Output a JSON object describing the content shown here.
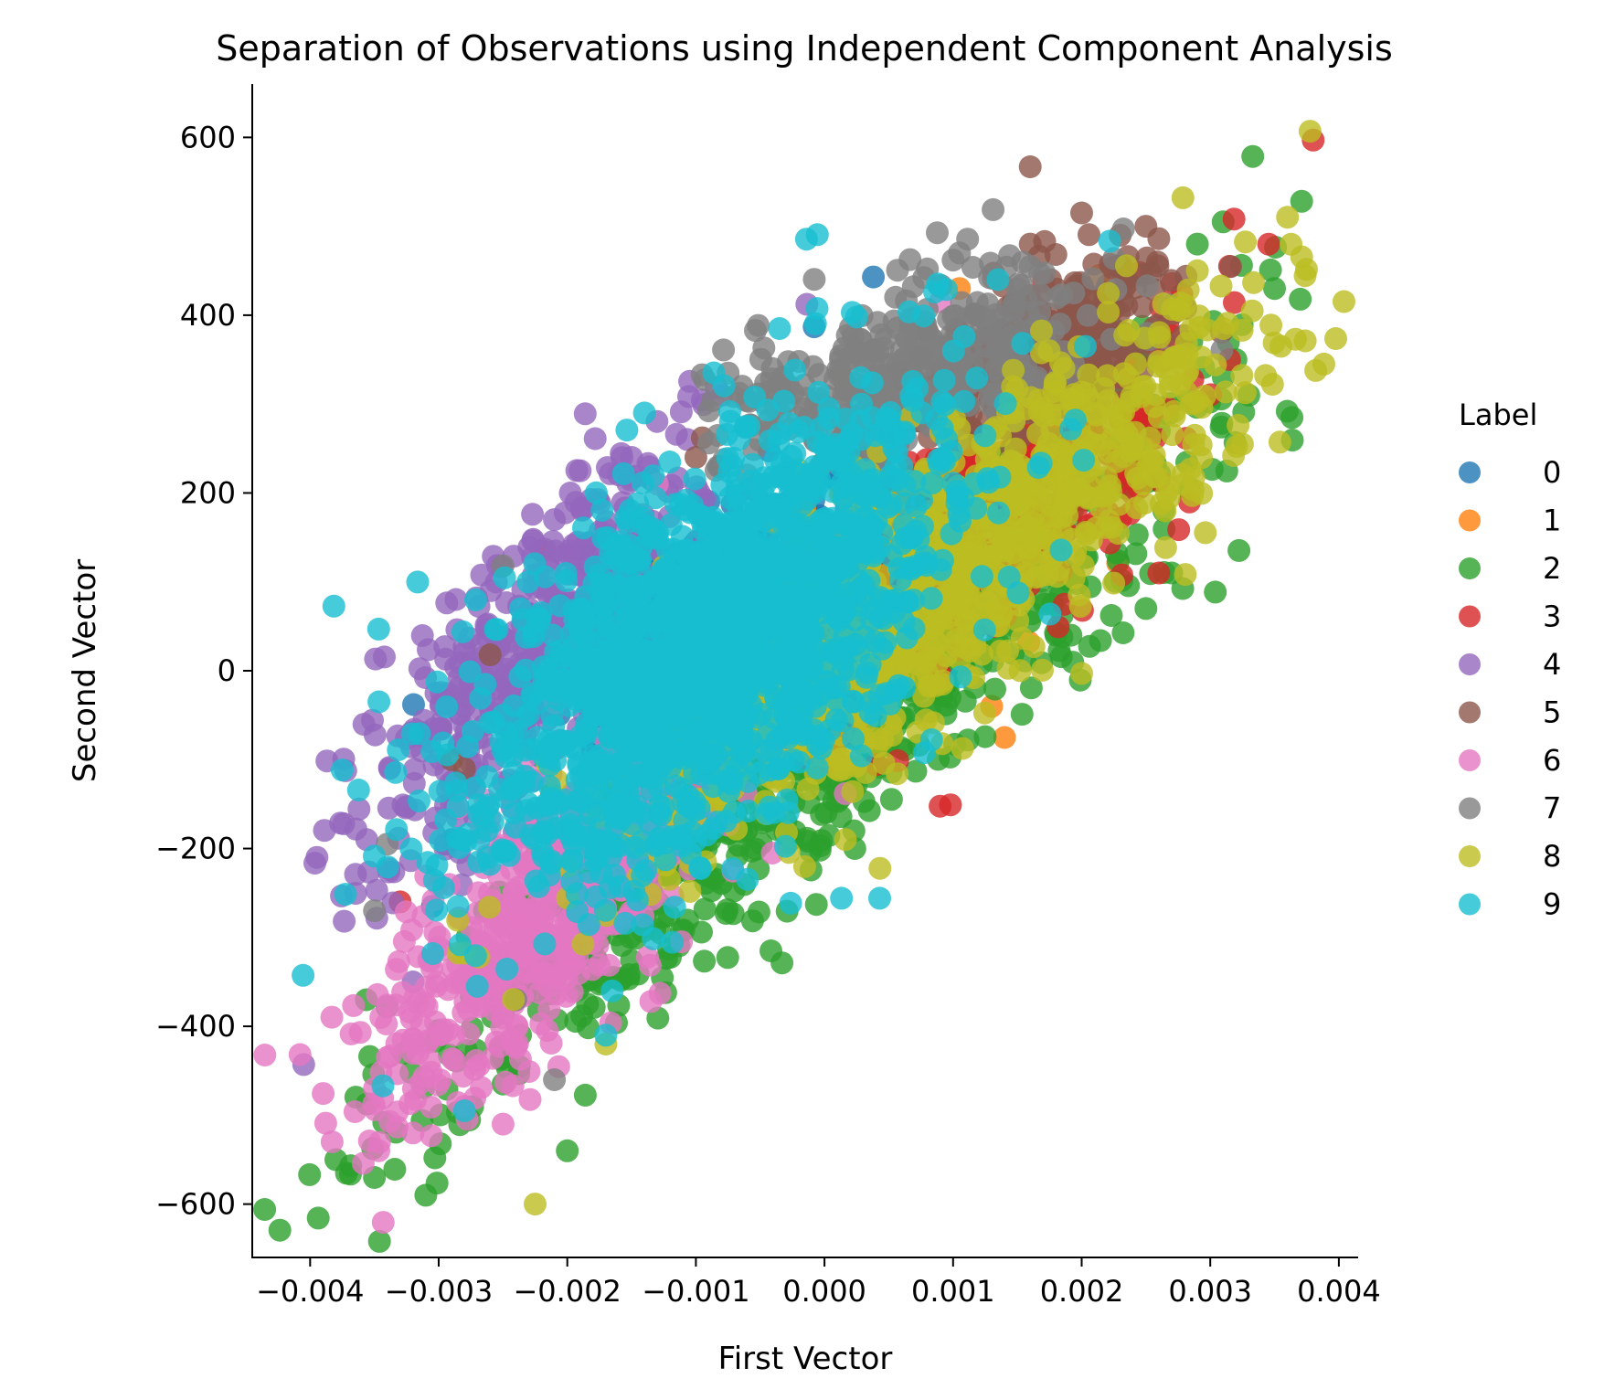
{
  "chart_data": {
    "type": "scatter",
    "title": "Separation of Observations using Independent Component Analysis",
    "xlabel": "First Vector",
    "ylabel": "Second Vector",
    "xlim": [
      -0.00445,
      0.00415
    ],
    "ylim": [
      -660,
      660
    ],
    "x_ticks": [
      -0.004,
      -0.003,
      -0.002,
      -0.001,
      0.0,
      0.001,
      0.002,
      0.003,
      0.004
    ],
    "x_tick_labels": [
      "−0.004",
      "−0.003",
      "−0.002",
      "−0.001",
      "0.000",
      "0.001",
      "0.002",
      "0.003",
      "0.004"
    ],
    "y_ticks": [
      600,
      400,
      200,
      0,
      -200,
      -400,
      -600
    ],
    "y_tick_labels": [
      "600",
      "400",
      "200",
      "0",
      "−200",
      "−400",
      "−600"
    ],
    "grid": false,
    "legend": {
      "title": "Label",
      "placement": "right-outside"
    },
    "series": [
      {
        "name": "0",
        "color": "#1f77b4",
        "cx": -0.0008,
        "cy": 60,
        "sx": 0.0006,
        "sy": 80,
        "tilt": 0.6,
        "n": 260,
        "extra": [
          [
            0.00038,
            443
          ],
          [
            -8e-05,
            387
          ],
          [
            -0.00295,
            -195
          ],
          [
            -0.00305,
            -265
          ],
          [
            -0.0029,
            -190
          ]
        ]
      },
      {
        "name": "1",
        "color": "#ff7f0e",
        "cx": 0.0004,
        "cy": 110,
        "sx": 0.0007,
        "sy": 90,
        "tilt": 0.6,
        "n": 260,
        "extra": [
          [
            0.00105,
            430
          ],
          [
            0.0013,
            -40
          ],
          [
            0.0014,
            -75
          ]
        ]
      },
      {
        "name": "2",
        "color": "#2ca02c",
        "cx": 0.0,
        "cy": -60,
        "sx": 0.0015,
        "sy": 200,
        "tilt": 0.92,
        "n": 900,
        "extra": [
          [
            -0.0038,
            -550
          ],
          [
            -0.0031,
            -590
          ],
          [
            -0.0035,
            -570
          ],
          [
            -0.002,
            -540
          ],
          [
            0.0031,
            505
          ],
          [
            0.0037,
            418
          ],
          [
            0.0035,
            430
          ],
          [
            0.0029,
            480
          ],
          [
            0.0032,
            350
          ],
          [
            0.0033,
            310
          ],
          [
            0.0027,
            110
          ],
          [
            0.0018,
            40
          ],
          [
            0.0025,
            70
          ]
        ]
      },
      {
        "name": "3",
        "color": "#d62728",
        "cx": 0.0012,
        "cy": 170,
        "sx": 0.0008,
        "sy": 110,
        "tilt": 0.75,
        "n": 420,
        "extra": [
          [
            0.0038,
            597
          ],
          [
            0.00315,
            455
          ],
          [
            0.00315,
            350
          ],
          [
            -0.0033,
            -260
          ],
          [
            -0.0023,
            0
          ],
          [
            -0.0022,
            135
          ],
          [
            0.0026,
            110
          ]
        ]
      },
      {
        "name": "4",
        "color": "#9467bd",
        "cx": -0.0023,
        "cy": 20,
        "sx": 0.00065,
        "sy": 120,
        "tilt": 0.8,
        "n": 430,
        "extra": [
          [
            -0.00405,
            -443
          ],
          [
            -0.0019,
            225
          ],
          [
            -0.0021,
            170
          ],
          [
            -0.0015,
            240
          ],
          [
            -0.0032,
            -350
          ],
          [
            -0.0028,
            -40
          ]
        ]
      },
      {
        "name": "5",
        "color": "#8c564b",
        "cx": 0.0017,
        "cy": 360,
        "sx": 0.0005,
        "sy": 50,
        "tilt": 0.55,
        "n": 320,
        "extra": [
          [
            0.0016,
            567
          ],
          [
            0.002,
            515
          ],
          [
            0.0025,
            500
          ],
          [
            0.0023,
            490
          ],
          [
            0.0016,
            480
          ],
          [
            -0.00095,
            262
          ],
          [
            -0.001,
            240
          ],
          [
            -0.0026,
            18
          ],
          [
            -0.0029,
            -100
          ],
          [
            -0.0028,
            -110
          ]
        ]
      },
      {
        "name": "6",
        "color": "#e377c2",
        "cx": -0.0022,
        "cy": -280,
        "sx": 0.0007,
        "sy": 110,
        "tilt": 0.75,
        "n": 520,
        "extra": [
          [
            -0.00345,
            -390
          ],
          [
            -0.0035,
            -470
          ],
          [
            -0.0032,
            -520
          ],
          [
            -0.0034,
            -435
          ],
          [
            -0.0028,
            -490
          ],
          [
            -0.0025,
            -510
          ],
          [
            -0.0013,
            210
          ],
          [
            0.0009,
            415
          ]
        ]
      },
      {
        "name": "7",
        "color": "#7f7f7f",
        "cx": 0.0007,
        "cy": 340,
        "sx": 0.0007,
        "sy": 60,
        "tilt": 0.55,
        "n": 360,
        "extra": [
          [
            -0.0025,
            118
          ],
          [
            -0.0034,
            -195
          ],
          [
            -0.0035,
            -270
          ],
          [
            0.00105,
            470
          ],
          [
            0.001,
            462
          ],
          [
            0.0016,
            455
          ],
          [
            0.0008,
            452
          ],
          [
            -0.0002,
            348
          ],
          [
            -0.0024,
            -370
          ],
          [
            -0.0021,
            -460
          ]
        ]
      },
      {
        "name": "8",
        "color": "#bcbd22",
        "cx": 0.0009,
        "cy": 110,
        "sx": 0.0012,
        "sy": 150,
        "tilt": 0.85,
        "n": 1000,
        "extra": [
          [
            -0.00225,
            -600
          ],
          [
            0.00325,
            255
          ],
          [
            0.0031,
            385
          ],
          [
            0.0029,
            450
          ],
          [
            0.002,
            -3
          ],
          [
            -0.002,
            -220
          ],
          [
            -0.0017,
            -420
          ]
        ]
      },
      {
        "name": "9",
        "color": "#17becf",
        "cx": -0.0009,
        "cy": 30,
        "sx": 0.00095,
        "sy": 135,
        "tilt": 0.6,
        "n": 1600,
        "extra": [
          [
            -0.00035,
            385
          ],
          [
            0.00025,
            398
          ],
          [
            0.00135,
            440
          ],
          [
            -0.0014,
            290
          ],
          [
            0.00195,
            282
          ],
          [
            -0.00285,
            -265
          ],
          [
            -0.0027,
            -355
          ],
          [
            -0.0028,
            -495
          ],
          [
            -0.0017,
            -410
          ],
          [
            -0.0025,
            -90
          ],
          [
            -0.0025,
            -50
          ]
        ]
      }
    ]
  }
}
